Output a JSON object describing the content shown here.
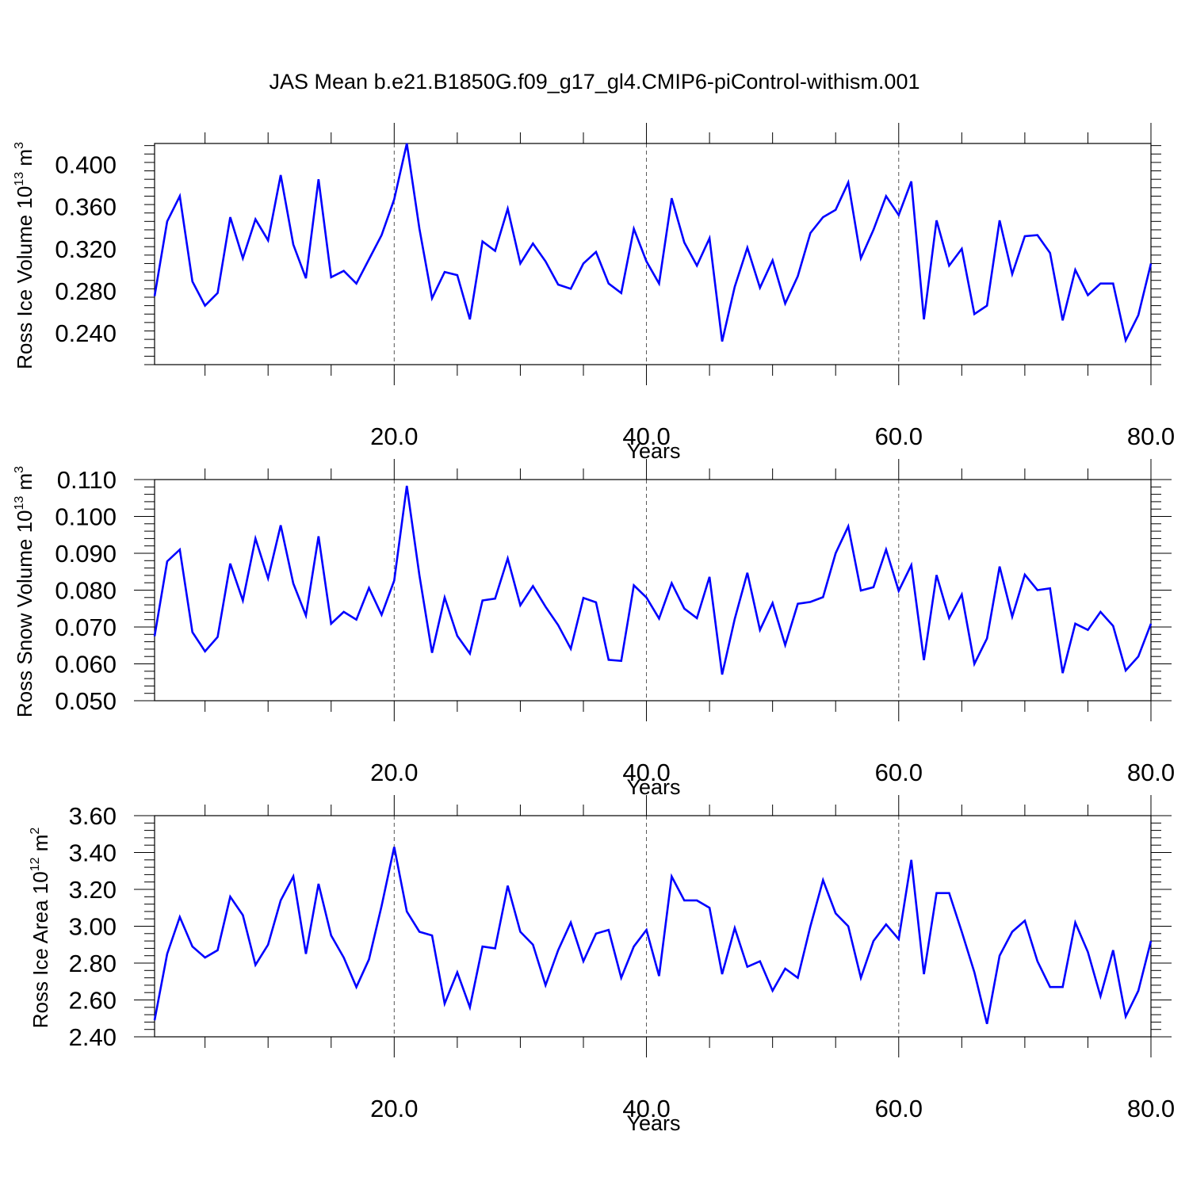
{
  "title": "JAS Mean b.e21.B1850G.f09_g17_gl4.CMIP6-piControl-withism.001",
  "colors": {
    "line": "#0000ff",
    "axis": "#000000",
    "grid": "#555555"
  },
  "chart_data": [
    {
      "type": "line",
      "xlabel": "Years",
      "ylabel": "Ross Ice Volume 10",
      "ylabel_exp": "13",
      "ylabel_unit": "m",
      "ylabel_unit_exp": "3",
      "xlim": [
        1,
        80
      ],
      "ylim": [
        0.21,
        0.42
      ],
      "yticks": [
        0.24,
        0.28,
        0.32,
        0.36,
        0.4
      ],
      "ytick_labels": [
        "0.240",
        "0.280",
        "0.320",
        "0.360",
        "0.400"
      ],
      "xticks": [
        20,
        40,
        60,
        80
      ],
      "xtick_labels": [
        "20.0",
        "40.0",
        "60.0",
        "80.0"
      ],
      "grid": "dashed vertical at x ticks",
      "series": [
        {
          "values": [
            0.275,
            0.346,
            0.37,
            0.289,
            0.266,
            0.278,
            0.35,
            0.311,
            0.348,
            0.328,
            0.39,
            0.324,
            0.292,
            0.386,
            0.293,
            0.299,
            0.287,
            0.31,
            0.333,
            0.367,
            0.42,
            0.339,
            0.273,
            0.298,
            0.295,
            0.253,
            0.327,
            0.318,
            0.358,
            0.306,
            0.325,
            0.308,
            0.286,
            0.282,
            0.306,
            0.317,
            0.287,
            0.278,
            0.339,
            0.308,
            0.287,
            0.368,
            0.326,
            0.304,
            0.33,
            0.232,
            0.284,
            0.321,
            0.283,
            0.309,
            0.268,
            0.294,
            0.335,
            0.35,
            0.357,
            0.383,
            0.311,
            0.338,
            0.37,
            0.352,
            0.384,
            0.253,
            0.347,
            0.304,
            0.32,
            0.258,
            0.266,
            0.347,
            0.296,
            0.332,
            0.333,
            0.316,
            0.252,
            0.3,
            0.276,
            0.287,
            0.287,
            0.233,
            0.257,
            0.306
          ]
        }
      ]
    },
    {
      "type": "line",
      "xlabel": "Years",
      "ylabel": "Ross Snow Volume 10",
      "ylabel_exp": "13",
      "ylabel_unit": "m",
      "ylabel_unit_exp": "3",
      "xlim": [
        1,
        80
      ],
      "ylim": [
        0.05,
        0.11
      ],
      "yticks": [
        0.05,
        0.06,
        0.07,
        0.08,
        0.09,
        0.1,
        0.11
      ],
      "ytick_labels": [
        "0.050",
        "0.060",
        "0.070",
        "0.080",
        "0.090",
        "0.100",
        "0.110"
      ],
      "xticks": [
        20,
        40,
        60,
        80
      ],
      "xtick_labels": [
        "20.0",
        "40.0",
        "60.0",
        "80.0"
      ],
      "grid": "dashed vertical at x ticks",
      "series": [
        {
          "values": [
            0.0675,
            0.0878,
            0.091,
            0.0686,
            0.0634,
            0.0673,
            0.0872,
            0.0772,
            0.094,
            0.0832,
            0.0976,
            0.0818,
            0.0731,
            0.0946,
            0.0709,
            0.0741,
            0.072,
            0.0806,
            0.0733,
            0.0826,
            0.1083,
            0.084,
            0.063,
            0.078,
            0.0676,
            0.0628,
            0.0772,
            0.0777,
            0.0886,
            0.0759,
            0.0811,
            0.0755,
            0.0705,
            0.0641,
            0.0779,
            0.0767,
            0.0611,
            0.0608,
            0.0813,
            0.078,
            0.0723,
            0.0819,
            0.075,
            0.0724,
            0.0836,
            0.0571,
            0.0722,
            0.0847,
            0.0692,
            0.0765,
            0.0651,
            0.0763,
            0.0768,
            0.0781,
            0.09,
            0.0973,
            0.0799,
            0.0808,
            0.091,
            0.0798,
            0.0868,
            0.061,
            0.0841,
            0.0724,
            0.0788,
            0.06,
            0.0669,
            0.0864,
            0.0728,
            0.0842,
            0.08,
            0.0805,
            0.0575,
            0.0709,
            0.0692,
            0.0741,
            0.0703,
            0.0582,
            0.062,
            0.0709
          ]
        }
      ]
    },
    {
      "type": "line",
      "xlabel": "Years",
      "ylabel": "Ross Ice Area 10",
      "ylabel_exp": "12",
      "ylabel_unit": "m",
      "ylabel_unit_exp": "2",
      "xlim": [
        1,
        80
      ],
      "ylim": [
        2.4,
        3.6
      ],
      "yticks": [
        2.4,
        2.6,
        2.8,
        3.0,
        3.2,
        3.4,
        3.6
      ],
      "ytick_labels": [
        "2.40",
        "2.60",
        "2.80",
        "3.00",
        "3.20",
        "3.40",
        "3.60"
      ],
      "xticks": [
        20,
        40,
        60,
        80
      ],
      "xtick_labels": [
        "20.0",
        "40.0",
        "60.0",
        "80.0"
      ],
      "grid": "dashed vertical at x ticks",
      "series": [
        {
          "values": [
            2.49,
            2.85,
            3.05,
            2.89,
            2.83,
            2.87,
            3.16,
            3.06,
            2.79,
            2.9,
            3.14,
            3.27,
            2.85,
            3.23,
            2.95,
            2.83,
            2.67,
            2.82,
            3.11,
            3.43,
            3.08,
            2.97,
            2.95,
            2.58,
            2.75,
            2.56,
            2.89,
            2.88,
            3.22,
            2.97,
            2.9,
            2.68,
            2.87,
            3.02,
            2.81,
            2.96,
            2.98,
            2.72,
            2.89,
            2.98,
            2.73,
            3.27,
            3.14,
            3.14,
            3.1,
            2.74,
            2.99,
            2.78,
            2.81,
            2.65,
            2.77,
            2.72,
            3.0,
            3.25,
            3.07,
            3.0,
            2.72,
            2.92,
            3.01,
            2.93,
            3.36,
            2.74,
            3.18,
            3.18,
            2.97,
            2.75,
            2.47,
            2.84,
            2.97,
            3.03,
            2.81,
            2.67,
            2.67,
            3.02,
            2.86,
            2.62,
            2.87,
            2.51,
            2.65,
            2.92
          ]
        }
      ]
    }
  ]
}
